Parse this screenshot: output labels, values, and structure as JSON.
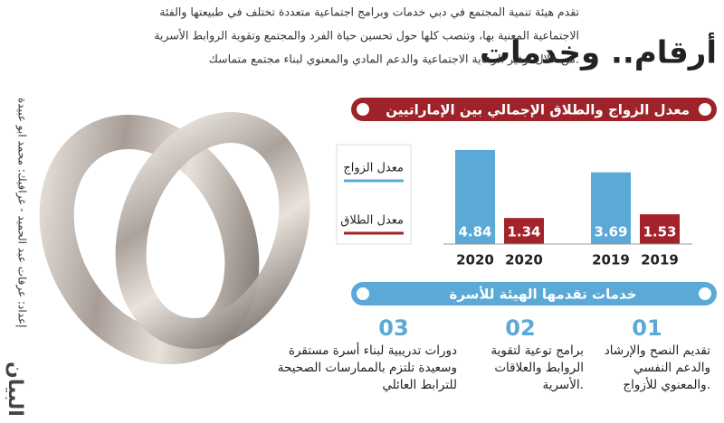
{
  "header": {
    "title": "أرقام.. وخدمات",
    "intro": [
      "تقدم هيئة تنمية المجتمع في دبي خدمات وبرامج اجتماعية متعددة تختلف في طبيعتها والفئة",
      "الاجتماعية المعنية بها، وتنصب كلها حول تحسين حياة الفرد والمجتمع وتقوية الروابط الأسرية",
      "من خلال توفير الرعاية الاجتماعية والدعم المادي والمعنوي لبناء مجتمع متماسك."
    ]
  },
  "credit": "إعداد: عرفات عبد الحميد - غرافيك: محمد ابو عبيدة",
  "logo": "البيان",
  "chart_data": {
    "type": "bar",
    "title": "معدل الزواج والطلاق الإجمالي بين الإماراتيين",
    "categories": [
      "2019",
      "2020"
    ],
    "series": [
      {
        "name": "معدل الزواج",
        "color": "#5aa9d6",
        "values": [
          3.69,
          4.84
        ]
      },
      {
        "name": "معدل الطلاق",
        "color": "#a3232a",
        "values": [
          1.53,
          1.34
        ]
      }
    ]
  },
  "services": {
    "title": "خدمات تقدمها الهيئة للأسرة",
    "items": [
      {
        "number": "01",
        "lines": [
          "تقديم النصح والإرشاد",
          "والدعم النفسي",
          "والمعنوي للأزواج."
        ]
      },
      {
        "number": "02",
        "lines": [
          "برامج توعية لتقوية",
          "الروابط والعلاقات",
          "الأسرية."
        ]
      },
      {
        "number": "03",
        "lines": [
          "دورات تدريبية لبناء أسرة مستقرة",
          "وسعيدة تلتزم بالممارسات الصحيحة",
          "للترابط العائلي"
        ]
      }
    ]
  }
}
